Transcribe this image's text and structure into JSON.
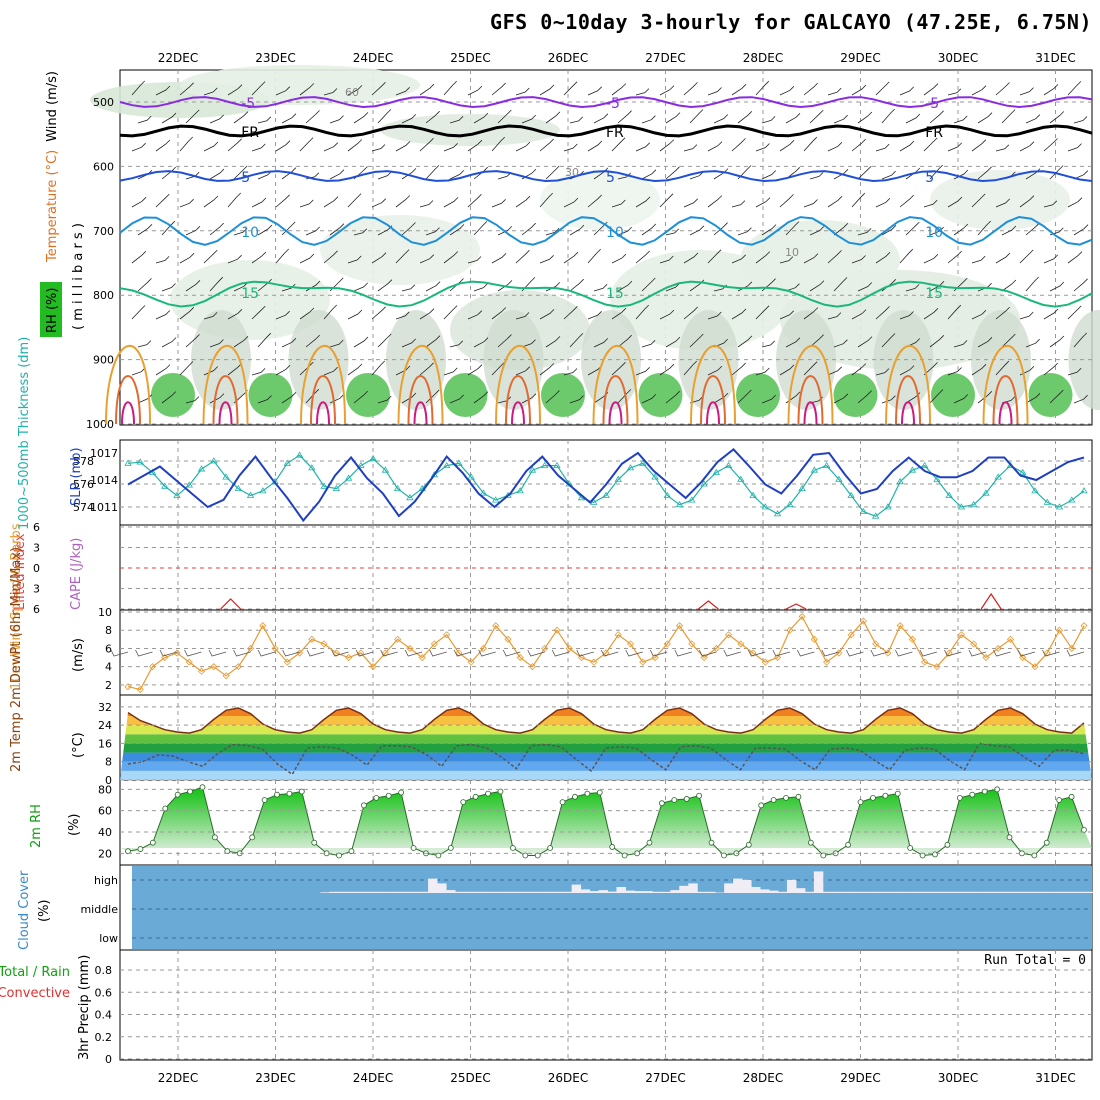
{
  "title": "GFS 0~10day 3-hourly for GALCAYO (47.25E, 6.75N)",
  "chart_data": [
    {
      "type": "line",
      "panel": "upper-air",
      "x_dates": [
        "22DEC",
        "23DEC",
        "24DEC",
        "25DEC",
        "26DEC",
        "27DEC",
        "28DEC",
        "29DEC",
        "30DEC",
        "31DEC"
      ],
      "y_label_parts": [
        "RH (%)",
        "Temperature (°C)",
        "Wind (m/s)"
      ],
      "y_unit": "( m i l l i b a r s )",
      "y_ticks": [
        500,
        600,
        700,
        800,
        900,
        1000
      ],
      "ylim": [
        1000,
        450
      ],
      "isotherms": [
        {
          "label": "-5",
          "pressure": 500,
          "color": "#8a2be2"
        },
        {
          "label": "FR",
          "pressure": 545,
          "color": "#000000"
        },
        {
          "label": "5",
          "pressure": 615,
          "color": "#1f4fd8"
        },
        {
          "label": "10",
          "pressure": 700,
          "color": "#1e90d8"
        },
        {
          "label": "15",
          "pressure": 795,
          "color": "#19b87a"
        }
      ],
      "rh_labels": [
        "60",
        "30",
        "10"
      ]
    },
    {
      "type": "line",
      "panel": "thickness-slp",
      "y_left_label": "1000~500mb Thickness (dm)",
      "y_right_label": "SLP (mb)",
      "left_ticks": [
        574,
        576,
        578
      ],
      "right_ticks": [
        1011,
        1014,
        1017
      ],
      "series": [
        {
          "name": "Thickness",
          "color": "#20b2aa",
          "values": [
            577.8,
            577.9,
            577.0,
            575.8,
            575.0,
            575.9,
            577.3,
            578.0,
            576.6,
            575.6,
            575.0,
            575.4,
            576.2,
            577.8,
            578.5,
            577.4,
            575.8,
            575.6,
            576.5,
            577.6,
            578.2,
            577.2,
            575.6,
            574.8,
            575.6,
            576.8,
            577.6,
            577.8,
            576.6,
            575.2,
            574.6,
            575.0,
            575.4,
            577.2,
            577.6,
            577.6,
            576.0,
            574.8,
            574.4,
            575.0,
            576.4,
            577.4,
            577.8,
            576.6,
            575.0,
            574.2,
            574.6,
            576.0,
            577.0,
            577.6,
            576.4,
            575.0,
            574.0,
            573.4,
            574.2,
            575.6,
            577.2,
            577.6,
            576.4,
            575.0,
            573.6,
            573.2,
            574.0,
            576.2,
            577.2,
            577.6,
            576.4,
            575.0,
            574.0,
            574.2,
            575.2,
            576.6,
            577.6,
            577.0,
            575.4,
            574.4,
            574.0,
            574.6,
            575.4
          ]
        },
        {
          "name": "SLP",
          "color": "#1f3fbf",
          "values": [
            1013.5,
            1014.5,
            1015.5,
            1014.0,
            1012.5,
            1011.0,
            1011.8,
            1014.5,
            1016.6,
            1014.2,
            1012.0,
            1009.5,
            1011.6,
            1014.5,
            1016.5,
            1014.2,
            1012.5,
            1010.0,
            1011.6,
            1014.0,
            1016.6,
            1014.8,
            1012.5,
            1011.0,
            1012.5,
            1015.0,
            1016.6,
            1014.5,
            1013.0,
            1011.5,
            1013.5,
            1015.8,
            1017.0,
            1015.0,
            1013.5,
            1012.0,
            1013.8,
            1016.0,
            1017.4,
            1015.5,
            1013.5,
            1012.5,
            1014.5,
            1016.8,
            1017.0,
            1014.6,
            1012.5,
            1013.0,
            1015.0,
            1016.5,
            1015.0,
            1014.3,
            1014.3,
            1015.0,
            1016.5,
            1016.5,
            1014.5,
            1014.0,
            1015.0,
            1016.0,
            1016.5
          ]
        }
      ]
    },
    {
      "type": "line",
      "panel": "stability",
      "y_left_label": "Lifted Index",
      "y_right_label": "CAPE (J/kg)",
      "ticks": [
        -6,
        -3,
        0,
        3,
        6
      ],
      "tick_labels": [
        "6",
        "3",
        "0",
        "3",
        "6"
      ],
      "cape_spikes": [
        {
          "day": 0.95,
          "value": 10
        },
        {
          "day": 5.85,
          "value": 8
        },
        {
          "day": 6.75,
          "value": 5
        },
        {
          "day": 8.75,
          "value": 15
        }
      ]
    },
    {
      "type": "line",
      "panel": "10m-wind",
      "y_label": "10m Wind Speed & Barbs",
      "y_unit": "(m/s)",
      "y_ticks": [
        2,
        4,
        6,
        8,
        10
      ],
      "ylim": [
        1,
        10
      ],
      "series": [
        {
          "name": "Wind speed",
          "color": "#e89a30",
          "values": [
            1.8,
            1.5,
            4.0,
            5.0,
            5.5,
            4.5,
            3.5,
            4.0,
            3.0,
            4.0,
            6.0,
            8.5,
            6.0,
            4.5,
            5.5,
            7.0,
            6.5,
            5.5,
            5.0,
            5.5,
            4.0,
            5.5,
            7.0,
            6.0,
            5.0,
            6.5,
            7.5,
            5.5,
            4.5,
            6.0,
            8.5,
            7.0,
            5.0,
            4.0,
            6.0,
            8.0,
            6.0,
            5.0,
            4.5,
            5.5,
            7.5,
            6.5,
            4.5,
            5.0,
            6.5,
            8.5,
            6.5,
            5.0,
            6.0,
            7.5,
            6.5,
            5.5,
            4.5,
            5.0,
            8.0,
            9.5,
            7.0,
            4.5,
            5.5,
            7.5,
            9.0,
            6.5,
            5.5,
            8.5,
            7.0,
            4.5,
            4.0,
            5.5,
            7.5,
            6.5,
            5.0,
            6.0,
            7.0,
            5.0,
            4.0,
            5.5,
            8.0,
            6.0,
            8.5
          ]
        }
      ]
    },
    {
      "type": "area",
      "panel": "2m-temp",
      "y_label": "2m Temp 2m DewPt (6hr Min/Max)",
      "y_unit": "(°C)",
      "y_ticks": [
        0,
        8,
        16,
        24,
        32
      ],
      "ylim": [
        0,
        35
      ],
      "series": [
        {
          "name": "Temperature",
          "color": "#8b4513",
          "values": [
            29.5,
            26.0,
            24.0,
            22.0,
            21.0,
            20.5,
            22.0,
            26.5,
            30.5,
            31.5,
            29.0,
            24.5,
            22.0,
            21.0,
            20.5,
            22.0,
            26.5,
            30.5,
            31.5,
            29.0,
            24.5,
            22.0,
            21.0,
            20.5,
            22.0,
            26.5,
            30.5,
            31.5,
            29.0,
            24.5,
            22.0,
            21.0,
            20.5,
            22.0,
            26.5,
            30.5,
            31.5,
            29.0,
            24.5,
            22.0,
            21.0,
            20.5,
            22.0,
            26.5,
            30.5,
            31.5,
            29.0,
            24.5,
            22.0,
            21.0,
            20.5,
            22.0,
            26.5,
            30.5,
            31.5,
            29.0,
            24.5,
            22.0,
            21.0,
            20.5,
            22.0,
            26.5,
            30.5,
            31.5,
            29.0,
            24.5,
            22.0,
            21.0,
            20.5,
            22.0,
            26.5,
            30.5,
            31.5,
            29.0,
            24.5,
            22.0,
            21.0,
            20.5,
            25.0
          ]
        },
        {
          "name": "Dew point",
          "color": "#777777",
          "values": [
            7.0,
            8.0,
            11.0,
            10.5,
            8.0,
            6.0,
            11.5,
            15.5,
            15.0,
            13.5,
            7.0,
            2.5,
            14.0,
            14.5,
            14.0,
            11.0,
            6.5,
            15.0,
            15.0,
            14.5,
            11.0,
            6.0,
            15.0,
            15.5,
            14.0,
            10.0,
            5.0,
            15.0,
            15.5,
            14.5,
            9.0,
            4.0,
            14.0,
            14.5,
            14.0,
            9.0,
            4.5,
            14.5,
            15.0,
            14.0,
            9.0,
            4.5,
            14.0,
            14.0,
            13.5,
            8.5,
            4.5,
            13.5,
            14.0,
            13.0,
            8.5,
            4.5,
            13.0,
            14.0,
            13.5,
            8.5,
            4.5,
            16.0,
            15.0,
            14.5,
            10.0,
            6.0,
            13.0,
            13.0,
            11.5
          ]
        }
      ]
    },
    {
      "type": "area",
      "panel": "2m-rh",
      "y_label": "2m RH",
      "y_unit": "(%)",
      "y_ticks": [
        20,
        40,
        60,
        80
      ],
      "ylim": [
        10,
        85
      ],
      "series": [
        {
          "name": "RH",
          "color": "#1fc81f",
          "values": [
            22,
            24,
            30,
            62,
            75,
            78,
            82,
            35,
            22,
            20,
            35,
            70,
            75,
            76,
            78,
            30,
            20,
            18,
            22,
            65,
            72,
            74,
            77,
            25,
            20,
            18,
            25,
            68,
            73,
            76,
            78,
            25,
            18,
            18,
            25,
            68,
            73,
            76,
            77,
            26,
            18,
            20,
            30,
            67,
            70,
            71,
            74,
            30,
            18,
            20,
            28,
            65,
            70,
            72,
            73,
            30,
            18,
            20,
            28,
            68,
            72,
            74,
            76,
            25,
            18,
            19,
            28,
            72,
            75,
            78,
            80,
            35,
            20,
            18,
            30,
            70,
            73,
            42
          ]
        }
      ]
    },
    {
      "type": "bar",
      "panel": "cloud-cover",
      "y_label": "Cloud Cover",
      "y_unit": "(%)",
      "y_ticks": [
        "high",
        "middle",
        "low"
      ],
      "high_cloud_pct": [
        0,
        0,
        0,
        0,
        0,
        0,
        0,
        0,
        0,
        0,
        0,
        0,
        0,
        0,
        0,
        0,
        0,
        0,
        0,
        0,
        0,
        3,
        5,
        5,
        5,
        5,
        5,
        5,
        5,
        5,
        5,
        5,
        5,
        60,
        40,
        12,
        5,
        5,
        5,
        5,
        5,
        5,
        5,
        5,
        5,
        5,
        5,
        5,
        5,
        35,
        15,
        8,
        12,
        6,
        25,
        10,
        8,
        8,
        5,
        5,
        12,
        30,
        40,
        5,
        5,
        2,
        40,
        60,
        55,
        25,
        15,
        10,
        5,
        55,
        20,
        5,
        90,
        5,
        5,
        5,
        5,
        5,
        5,
        5,
        5,
        5,
        5,
        5,
        5,
        5,
        5,
        5,
        5,
        5,
        5,
        5,
        5,
        5,
        5,
        5,
        5,
        5,
        5,
        5,
        5,
        5,
        5
      ]
    },
    {
      "type": "bar",
      "panel": "precip",
      "y_label": "3hr Precip (mm)",
      "y_left_label": "Total / Rain",
      "y_left_label2": "Convective",
      "y_ticks": [
        0,
        0.2,
        0.4,
        0.6,
        0.8
      ],
      "tick_labels": [
        "0",
        "0.2",
        "0.4",
        "0.6",
        "0.8"
      ],
      "ylim": [
        0,
        1
      ],
      "run_total_text": "Run Total = 0",
      "values": []
    }
  ]
}
